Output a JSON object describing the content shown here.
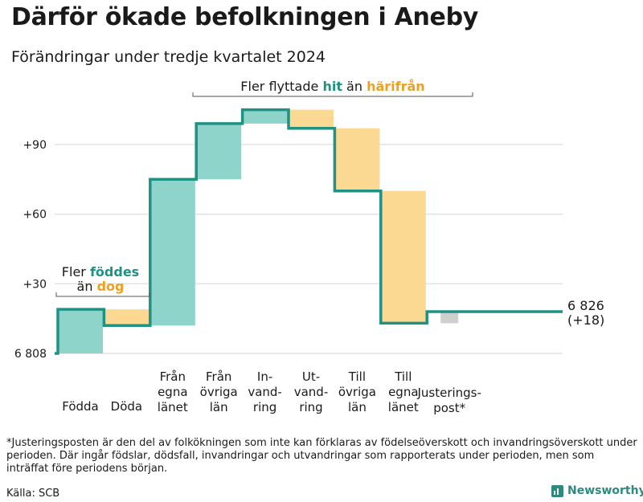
{
  "title": "Därför ökade befolkningen i Aneby",
  "subtitle": "Förändringar under tredje kvartalet 2024",
  "colors": {
    "increase_fill": "#8ed4ca",
    "decrease_fill": "#fcd992",
    "adjust_fill": "#cfcfcf",
    "line": "#1f9283",
    "teal_text": "#1f9283",
    "orange_text": "#f0a020",
    "grid": "#e3e3e3",
    "bracket": "#555555"
  },
  "chart_data": {
    "type": "waterfall",
    "start_value": 6808,
    "start_label": "6 808",
    "end_value": 6826,
    "end_label": "6 826",
    "end_change_label": "(+18)",
    "y_ticks": [
      {
        "value": 30,
        "label": "+30"
      },
      {
        "value": 60,
        "label": "+60"
      },
      {
        "value": 90,
        "label": "+90"
      }
    ],
    "y_range": [
      0,
      105
    ],
    "steps": [
      {
        "label_lines": [
          "Födda"
        ],
        "value": 19,
        "kind": "increase"
      },
      {
        "label_lines": [
          "Döda"
        ],
        "value": -7,
        "kind": "decrease"
      },
      {
        "label_lines": [
          "Från",
          "egna",
          "länet"
        ],
        "value": 63,
        "kind": "increase"
      },
      {
        "label_lines": [
          "Från",
          "övriga",
          "län"
        ],
        "value": 24,
        "kind": "increase"
      },
      {
        "label_lines": [
          "In-",
          "vand-",
          "ring"
        ],
        "value": 6,
        "kind": "increase"
      },
      {
        "label_lines": [
          "Ut-",
          "vand-",
          "ring"
        ],
        "value": -8,
        "kind": "decrease"
      },
      {
        "label_lines": [
          "Till",
          "övriga",
          "län"
        ],
        "value": -27,
        "kind": "decrease"
      },
      {
        "label_lines": [
          "Till",
          "egna",
          "länet"
        ],
        "value": -57,
        "kind": "decrease"
      },
      {
        "label_lines": [
          "Justerings-",
          "post*"
        ],
        "value": 5,
        "kind": "adjustment"
      }
    ],
    "annotations": [
      {
        "id": "births",
        "parts": [
          {
            "text": "Fler ",
            "style": "plain"
          },
          {
            "text": "föddes",
            "style": "teal"
          }
        ],
        "parts2": [
          {
            "text": "än ",
            "style": "plain"
          },
          {
            "text": "dog",
            "style": "orange"
          }
        ]
      },
      {
        "id": "migration",
        "parts": [
          {
            "text": "Fler flyttade ",
            "style": "plain"
          },
          {
            "text": "hit",
            "style": "teal"
          },
          {
            "text": " än ",
            "style": "plain"
          },
          {
            "text": "härifrån",
            "style": "orange"
          }
        ]
      }
    ]
  },
  "footnote": "*Justeringsposten är den del av folkökningen som inte kan förklaras av födelseöverskott och invandringsöverskott under perioden. Där ingår födslar, dödsfall, invandringar och utvandringar som rapporterats under perioden, men som inträffat före periodens början.",
  "source": "Källa: SCB",
  "brand": "Newsworthy"
}
